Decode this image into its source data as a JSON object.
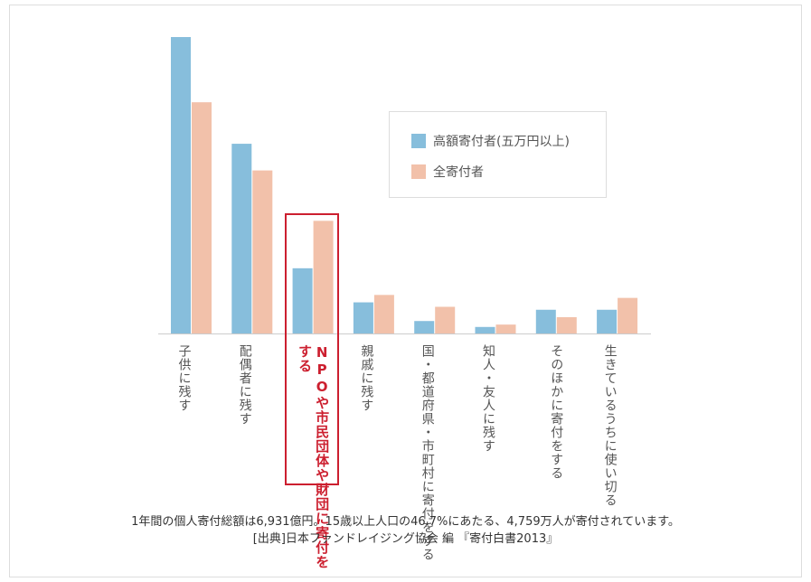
{
  "chart_data": {
    "type": "bar",
    "categories": [
      [
        "子供に",
        "残す"
      ],
      [
        "配偶者に",
        "残す"
      ],
      [
        "NPOや市民団体や",
        "財団に寄付をする"
      ],
      [
        "親戚に",
        "残す"
      ],
      [
        "国・都道府県・",
        "市町村に寄付をする"
      ],
      [
        "知人・友人に",
        "残す"
      ],
      [
        "そのほかに寄付をする"
      ],
      [
        "生きているうちに",
        "使い切る"
      ]
    ],
    "highlight_index": 2,
    "series": [
      {
        "name": "高額寄付者(五万円以上)",
        "color": "#87bedc",
        "values": [
          100,
          64,
          22,
          10.5,
          4.2,
          2.2,
          8,
          8
        ]
      },
      {
        "name": "全寄付者",
        "color": "#f2c1aa",
        "values": [
          78,
          55,
          38,
          13,
          9,
          3,
          5.5,
          12
        ]
      }
    ],
    "ylim": [
      0,
      100
    ],
    "grid": false,
    "legend_position": "top-right"
  },
  "footer": {
    "line1": "1年間の個人寄付総額は6,931億円。15歳以上人口の46.7%にあたる、4,759万人が寄付されています。",
    "line2": "[出典]日本ファンドレイジング協会 編 『寄付白書2013』"
  }
}
